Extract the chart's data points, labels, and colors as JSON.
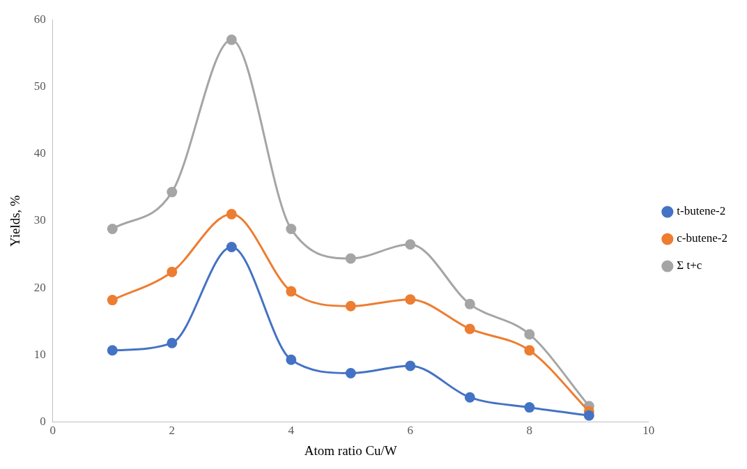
{
  "chart_data": {
    "type": "line",
    "xlabel": "Atom ratio Cu/W",
    "ylabel": "Yields, %",
    "x": [
      1,
      2,
      3,
      4,
      5,
      6,
      7,
      8,
      9
    ],
    "series": [
      {
        "name": "t-butene-2",
        "color": "#4472c4",
        "values": [
          10.7,
          11.8,
          26.1,
          9.3,
          7.3,
          8.4,
          3.7,
          2.2,
          1.0
        ]
      },
      {
        "name": "c-butene-2",
        "color": "#ed7d31",
        "values": [
          18.2,
          22.4,
          31.0,
          19.5,
          17.3,
          18.3,
          13.9,
          10.7,
          1.6
        ]
      },
      {
        "name": "Σ t+c",
        "color": "#a5a5a5",
        "values": [
          28.8,
          34.3,
          57.0,
          28.8,
          24.4,
          26.5,
          17.6,
          13.1,
          2.4
        ]
      }
    ],
    "xlim": [
      0,
      10
    ],
    "xticks": [
      0,
      2,
      4,
      6,
      8,
      10
    ],
    "ylim": [
      0,
      60
    ],
    "yticks": [
      0,
      10,
      20,
      30,
      40,
      50,
      60
    ],
    "grid": false,
    "legend": "right",
    "marker": "circle",
    "line_style": "solid"
  }
}
